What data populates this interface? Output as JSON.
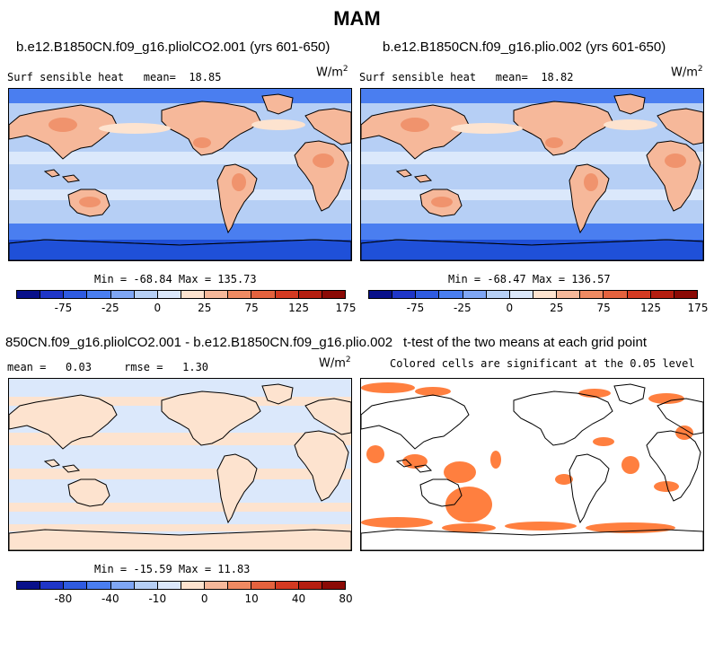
{
  "title": "MAM",
  "colors": {
    "blue_dark": "#1f50d8",
    "blue_mid": "#4a7ef0",
    "blue_light": "#b6cff5",
    "blue_pale": "#dbe8fb",
    "orange_pale": "#fde3cf",
    "orange_light": "#f6b89a",
    "orange_mid": "#ef8a62",
    "sig_orange": "#ff7f3f",
    "land_line": "#000000"
  },
  "panels": [
    {
      "case": "b.e12.B1850CN.f09_g16.pliolCO2.001 (yrs 601-650)",
      "variable_label": "Surf sensible heat",
      "mean_label": "mean=",
      "mean_value": "18.85",
      "units": "W/m",
      "units_exp": "2",
      "min_max": "Min = -68.84 Max = 135.73"
    },
    {
      "case": "b.e12.B1850CN.f09_g16.plio.002 (yrs 601-650)",
      "variable_label": "Surf sensible heat",
      "mean_label": "mean=",
      "mean_value": "18.82",
      "units": "W/m",
      "units_exp": "2",
      "min_max": "Min = -68.47 Max = 136.57"
    },
    {
      "case": "850CN.f09_g16.pliolCO2.001 - b.e12.B1850CN.f09_g16.plio.002",
      "mean_label": "mean =",
      "mean_value": "0.03",
      "rmse_label": "rmse =",
      "rmse_value": "1.30",
      "units": "W/m",
      "units_exp": "2",
      "min_max": "Min = -15.59 Max = 11.83"
    },
    {
      "case": "t-test of the two means at each grid point",
      "subtitle": "Colored cells are significant at the 0.05 level"
    }
  ],
  "chart_data": [
    {
      "type": "heatmap",
      "title": "b.e12.B1850CN.f09_g16.pliolCO2.001 (yrs 601-650)",
      "colorbar": {
        "levels": [
          -100,
          -75,
          -50,
          -25,
          -10,
          0,
          10,
          25,
          50,
          75,
          100,
          125,
          150,
          175,
          200
        ],
        "tick_labels": [
          "-75",
          "-25",
          "0",
          "25",
          "75",
          "125",
          "175"
        ],
        "colors": [
          "#08108a",
          "#1f36c8",
          "#2f5be0",
          "#4a7ef0",
          "#7fa6f4",
          "#b6cff5",
          "#dbe8fb",
          "#fde3cf",
          "#f6b89a",
          "#ef8a62",
          "#e4623e",
          "#d43a22",
          "#b51e10",
          "#8b0a05"
        ]
      },
      "mean": 18.85,
      "min": -68.84,
      "max": 135.73
    },
    {
      "type": "heatmap",
      "title": "b.e12.B1850CN.f09_g16.plio.002 (yrs 601-650)",
      "colorbar": {
        "levels": [
          -100,
          -75,
          -50,
          -25,
          -10,
          0,
          10,
          25,
          50,
          75,
          100,
          125,
          150,
          175,
          200
        ],
        "tick_labels": [
          "-75",
          "-25",
          "0",
          "25",
          "75",
          "125",
          "175"
        ],
        "colors": [
          "#08108a",
          "#1f36c8",
          "#2f5be0",
          "#4a7ef0",
          "#7fa6f4",
          "#b6cff5",
          "#dbe8fb",
          "#fde3cf",
          "#f6b89a",
          "#ef8a62",
          "#e4623e",
          "#d43a22",
          "#b51e10",
          "#8b0a05"
        ]
      },
      "mean": 18.82,
      "min": -68.47,
      "max": 136.57
    },
    {
      "type": "heatmap",
      "title": "850CN.f09_g16.pliolCO2.001 - b.e12.B1850CN.f09_g16.plio.002",
      "colorbar": {
        "tick_labels": [
          "-80",
          "-40",
          "-10",
          "0",
          "10",
          "40",
          "80"
        ],
        "colors": [
          "#08108a",
          "#1f36c8",
          "#2f5be0",
          "#4a7ef0",
          "#7fa6f4",
          "#b6cff5",
          "#dbe8fb",
          "#fde3cf",
          "#f6b89a",
          "#ef8a62",
          "#e4623e",
          "#d43a22",
          "#b51e10",
          "#8b0a05"
        ]
      },
      "mean": 0.03,
      "rmse": 1.3,
      "min": -15.59,
      "max": 11.83
    },
    {
      "type": "heatmap",
      "title": "t-test of the two means at each grid point",
      "significance_level": 0.05
    }
  ]
}
